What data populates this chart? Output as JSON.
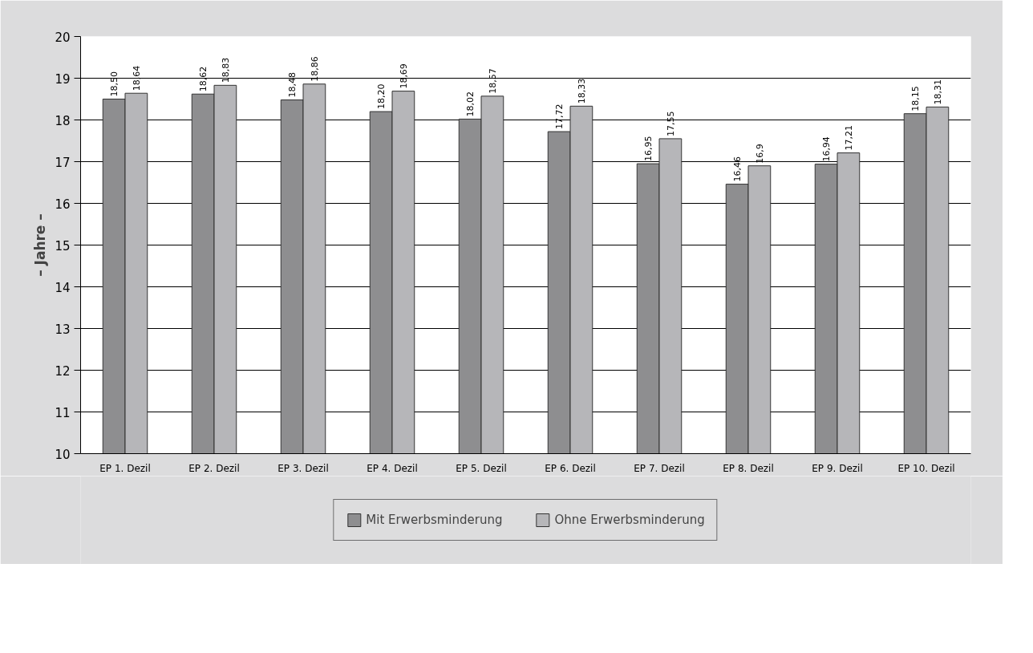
{
  "chart_data": {
    "type": "bar",
    "ylabel": "– Jahre –",
    "categories": [
      "EP 1. Dezil",
      "EP 2. Dezil",
      "EP 3. Dezil",
      "EP 4. Dezil",
      "EP 5. Dezil",
      "EP 6. Dezil",
      "EP 7. Dezil",
      "EP 8. Dezil",
      "EP 9. Dezil",
      "EP 10. Dezil"
    ],
    "series": [
      {
        "name": "Mit Erwerbsminderung",
        "color": "#8e8e90",
        "values": [
          18.5,
          18.62,
          18.48,
          18.2,
          18.02,
          17.72,
          16.95,
          16.46,
          16.94,
          18.15
        ],
        "value_labels": [
          "18,50",
          "18,62",
          "18,48",
          "18,20",
          "18,02",
          "17,72",
          "16,95",
          "16,46",
          "16,94",
          "18,15"
        ]
      },
      {
        "name": "Ohne Erwerbsminderung",
        "color": "#b6b6b9",
        "values": [
          18.64,
          18.83,
          18.86,
          18.69,
          18.57,
          18.33,
          17.55,
          16.9,
          17.21,
          18.31
        ],
        "value_labels": [
          "18,64",
          "18,83",
          "18,86",
          "18,69",
          "18,57",
          "18,33",
          "17,55",
          "16,9",
          "17,21",
          "18,31"
        ]
      }
    ],
    "ylim": [
      10,
      20
    ],
    "yticks": [
      10,
      11,
      12,
      13,
      14,
      15,
      16,
      17,
      18,
      19,
      20
    ],
    "grid": "y",
    "legend": "bottom"
  }
}
